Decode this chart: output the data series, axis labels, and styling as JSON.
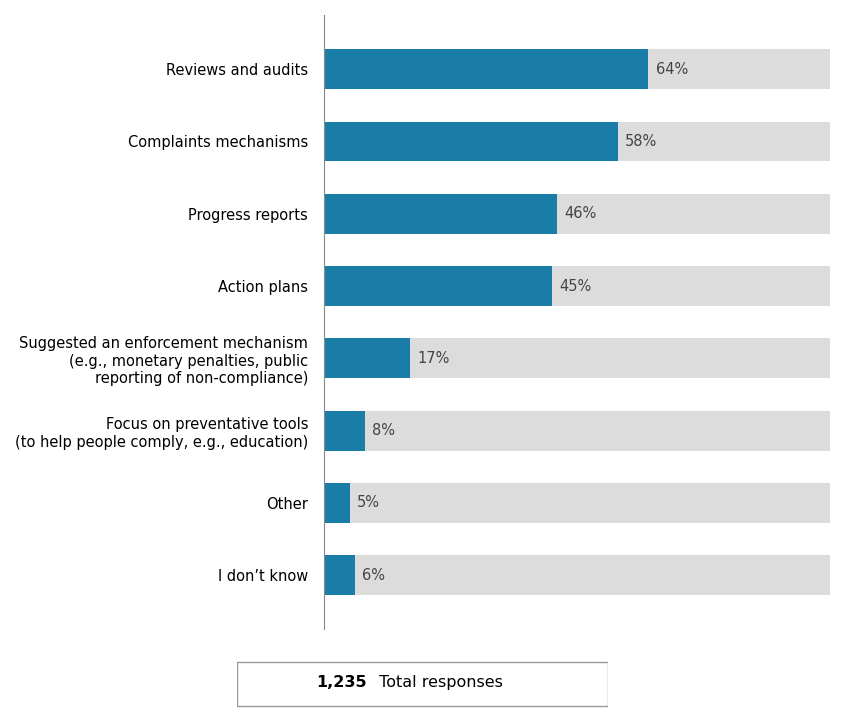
{
  "categories": [
    "I don’t know",
    "Other",
    "Focus on preventative tools\n(to help people comply, e.g., education)",
    "Suggested an enforcement mechanism\n(e.g., monetary penalties, public\nreporting of non-compliance)",
    "Action plans",
    "Progress reports",
    "Complaints mechanisms",
    "Reviews and audits"
  ],
  "values": [
    6,
    5,
    8,
    17,
    45,
    46,
    58,
    64
  ],
  "bar_color": "#1a7da8",
  "bg_color": "#dcdcdc",
  "max_value": 100,
  "bar_height": 0.55,
  "labels": [
    "6%",
    "5%",
    "8%",
    "17%",
    "45%",
    "46%",
    "58%",
    "64%"
  ],
  "footnote_bold": "1,235",
  "footnote_text": " Total responses",
  "background": "#ffffff",
  "label_fontsize": 10.5,
  "tick_fontsize": 10.5,
  "footnote_fontsize": 11.5,
  "label_color": "#444444"
}
